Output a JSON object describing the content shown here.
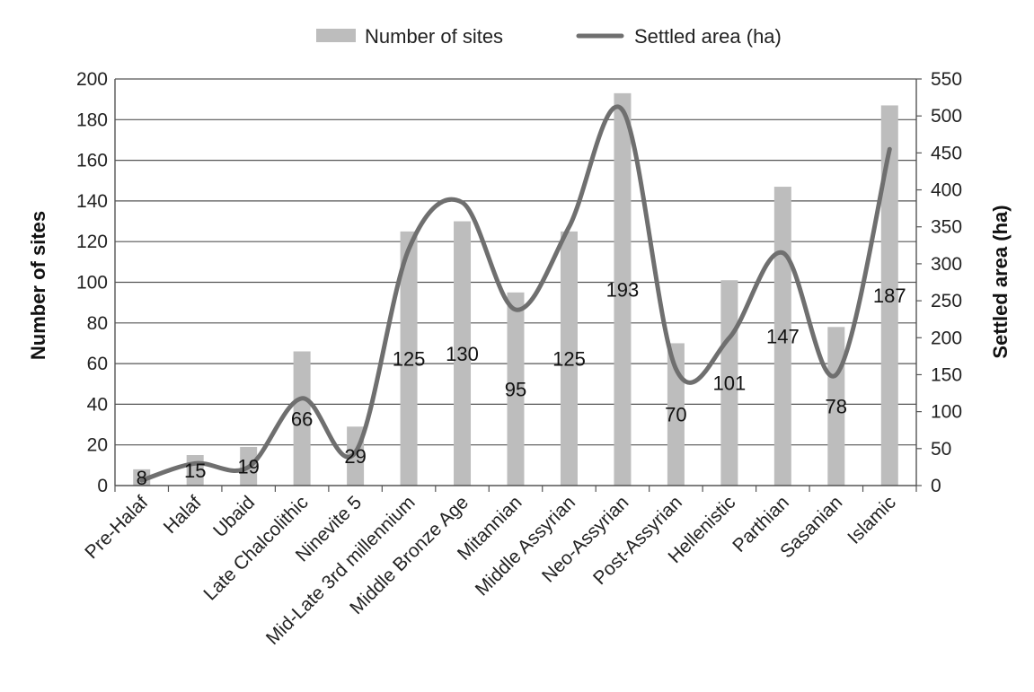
{
  "chart_data": {
    "type": "bar",
    "title": "",
    "categories": [
      "Pre-Halaf",
      "Halaf",
      "Ubaid",
      "Late Chalcolithic",
      "Ninevite 5",
      "Mid-Late 3rd millennium",
      "Middle Bronze Age",
      "Mitannian",
      "Middle Assyrian",
      "Neo-Assyrian",
      "Post-Assyrian",
      "Hellenistic",
      "Parthian",
      "Sasanian",
      "Islamic"
    ],
    "series": [
      {
        "name": "Number of sites",
        "type": "bar",
        "axis": "left",
        "color": "#bdbdbd",
        "values": [
          8,
          15,
          19,
          66,
          29,
          125,
          130,
          95,
          125,
          193,
          70,
          101,
          147,
          78,
          187
        ]
      },
      {
        "name": "Settled area (ha)",
        "type": "line",
        "axis": "right",
        "color": "#6f6f6f",
        "values": [
          7,
          30,
          25,
          118,
          45,
          320,
          383,
          238,
          350,
          508,
          158,
          200,
          315,
          150,
          455
        ]
      }
    ],
    "data_labels": [
      "8",
      "15",
      "19",
      "66",
      "29",
      "125",
      "130",
      "95",
      "125",
      "193",
      "70",
      "101",
      "147",
      "78",
      "187"
    ],
    "ylabel": "Number of sites",
    "y2label": "Settled area (ha)",
    "ylim": [
      0,
      200
    ],
    "y2lim": [
      0,
      550
    ],
    "yticks": [
      0,
      20,
      40,
      60,
      80,
      100,
      120,
      140,
      160,
      180,
      200
    ],
    "y2ticks": [
      0,
      50,
      100,
      150,
      200,
      250,
      300,
      350,
      400,
      450,
      500,
      550
    ],
    "grid": true,
    "legend": "top-center"
  }
}
